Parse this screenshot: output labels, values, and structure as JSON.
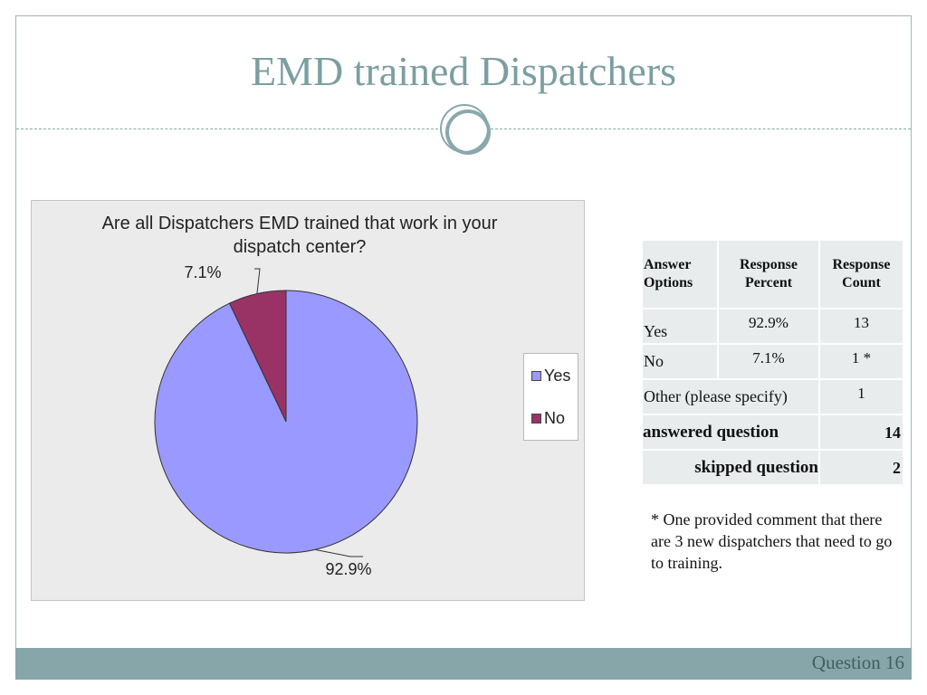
{
  "slide": {
    "title": "EMD trained Dispatchers",
    "footer_label": "Question 16",
    "accent_color": "#87a6a9",
    "title_color": "#7b9ea2"
  },
  "chart_data": {
    "type": "pie",
    "title": "Are all Dispatchers EMD trained that work in your dispatch center?",
    "slices": [
      {
        "label": "Yes",
        "value": 92.9,
        "data_label": "92.9%",
        "color": "#9999ff"
      },
      {
        "label": "No",
        "value": 7.1,
        "data_label": "7.1%",
        "color": "#993366"
      }
    ],
    "legend": {
      "placement": "right",
      "entries": [
        "Yes",
        "No"
      ]
    }
  },
  "table": {
    "headers": [
      "Answer Options",
      "Response Percent",
      "Response Count"
    ],
    "rows": [
      {
        "option": "Yes",
        "percent": "92.9%",
        "count": "13"
      },
      {
        "option": "No",
        "percent": "7.1%",
        "count": "1 *"
      },
      {
        "option": "Other (please specify)",
        "percent": "",
        "count": "1"
      }
    ],
    "answered_label": "answered question",
    "answered_value": "14",
    "skipped_label": "skipped question",
    "skipped_value": "2"
  },
  "footnote": "* One provided comment that there are 3 new dispatchers that need to go to training."
}
